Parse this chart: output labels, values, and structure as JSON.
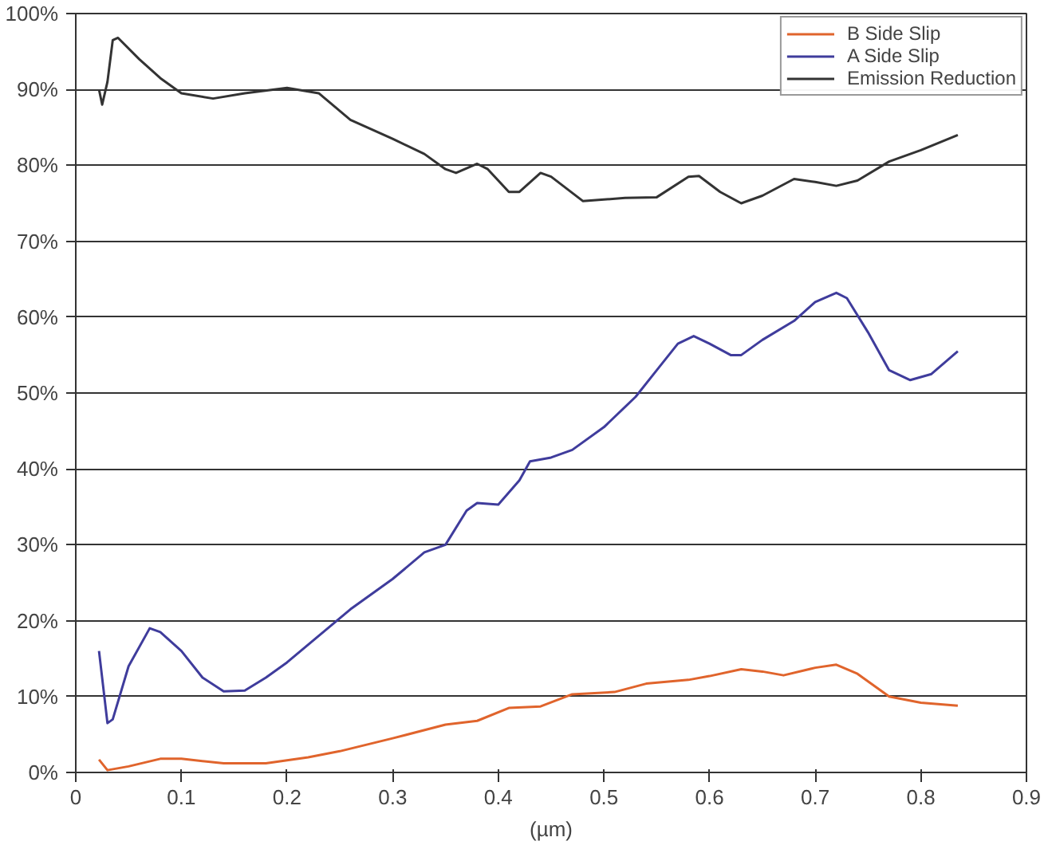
{
  "chart_data": {
    "type": "line",
    "xlabel": "(µm)",
    "xlim": [
      0,
      0.9
    ],
    "xticks": [
      0,
      0.1,
      0.2,
      0.3,
      0.4,
      0.5,
      0.6,
      0.7,
      0.8,
      0.9
    ],
    "ylim": [
      0,
      100
    ],
    "yticks": [
      {
        "value": 0,
        "label": "0%"
      },
      {
        "value": 10,
        "label": "10%"
      },
      {
        "value": 20,
        "label": "20%"
      },
      {
        "value": 30,
        "label": "30%"
      },
      {
        "value": 40,
        "label": "40%"
      },
      {
        "value": 50,
        "label": "50%"
      },
      {
        "value": 60,
        "label": "60%"
      },
      {
        "value": 70,
        "label": "70%"
      },
      {
        "value": 80,
        "label": "80%"
      },
      {
        "value": 90,
        "label": "90%"
      },
      {
        "value": 100,
        "label": "100%"
      }
    ],
    "grid": "y",
    "legend": "top right",
    "marker": "none",
    "line_style": "solid",
    "series": [
      {
        "name": "B Side Slip",
        "color": "#e0642c",
        "x": [
          0.022,
          0.03,
          0.05,
          0.08,
          0.1,
          0.14,
          0.18,
          0.22,
          0.25,
          0.3,
          0.35,
          0.38,
          0.41,
          0.44,
          0.47,
          0.51,
          0.54,
          0.58,
          0.6,
          0.63,
          0.65,
          0.67,
          0.7,
          0.72,
          0.74,
          0.77,
          0.8,
          0.835
        ],
        "values": [
          1.7,
          0.3,
          0.8,
          1.8,
          1.8,
          1.2,
          1.2,
          2,
          2.8,
          4.5,
          6.3,
          6.8,
          8.5,
          8.7,
          10.3,
          10.6,
          11.7,
          12.2,
          12.7,
          13.6,
          13.3,
          12.8,
          13.8,
          14.2,
          13,
          10,
          9.2,
          8.8
        ]
      },
      {
        "name": "A Side Slip",
        "color": "#3f3c9c",
        "x": [
          0.022,
          0.03,
          0.035,
          0.05,
          0.07,
          0.08,
          0.1,
          0.12,
          0.14,
          0.16,
          0.18,
          0.2,
          0.23,
          0.26,
          0.3,
          0.33,
          0.35,
          0.37,
          0.38,
          0.4,
          0.42,
          0.43,
          0.45,
          0.47,
          0.5,
          0.53,
          0.55,
          0.57,
          0.585,
          0.6,
          0.62,
          0.63,
          0.65,
          0.68,
          0.7,
          0.72,
          0.73,
          0.75,
          0.77,
          0.79,
          0.81,
          0.835
        ],
        "values": [
          16,
          6.5,
          7,
          14,
          19,
          18.5,
          16,
          12.5,
          10.7,
          10.8,
          12.5,
          14.5,
          18,
          21.5,
          25.5,
          29,
          30,
          34.5,
          35.5,
          35.3,
          38.5,
          41,
          41.5,
          42.5,
          45.5,
          49.5,
          53,
          56.5,
          57.5,
          56.5,
          55,
          55,
          57,
          59.5,
          62,
          63.2,
          62.5,
          58,
          53,
          51.7,
          52.5,
          55.5
        ]
      },
      {
        "name": "Emission Reduction",
        "color": "#333333",
        "x": [
          0.022,
          0.025,
          0.03,
          0.035,
          0.04,
          0.06,
          0.08,
          0.1,
          0.13,
          0.16,
          0.2,
          0.23,
          0.26,
          0.3,
          0.33,
          0.35,
          0.36,
          0.38,
          0.39,
          0.41,
          0.42,
          0.44,
          0.45,
          0.48,
          0.5,
          0.52,
          0.55,
          0.58,
          0.59,
          0.61,
          0.63,
          0.65,
          0.68,
          0.7,
          0.72,
          0.74,
          0.77,
          0.8,
          0.835
        ],
        "values": [
          90,
          88,
          91,
          96.5,
          96.8,
          94,
          91.5,
          89.5,
          88.8,
          89.5,
          90.2,
          89.5,
          86,
          83.5,
          81.5,
          79.5,
          79,
          80.2,
          79.5,
          76.5,
          76.5,
          79,
          78.5,
          75.3,
          75.5,
          75.7,
          75.8,
          78.5,
          78.6,
          76.5,
          75,
          76,
          78.2,
          77.8,
          77.3,
          78,
          80.5,
          82,
          84
        ]
      }
    ]
  }
}
